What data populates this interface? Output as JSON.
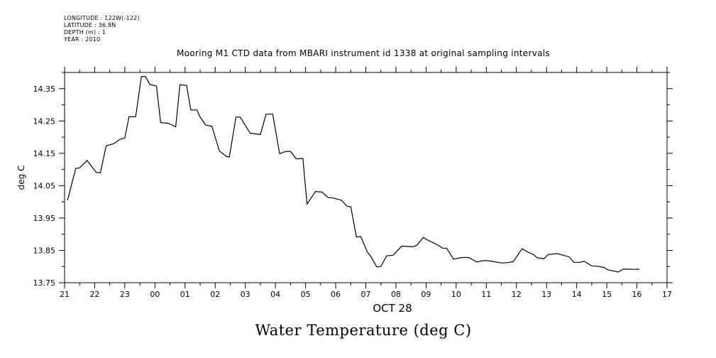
{
  "meta": {
    "longitude": "LONGITUDE : 122W(-122)",
    "latitude": "LATITUDE : 36.8N",
    "depth": "DEPTH (m) : 1",
    "year": "YEAR : 2010"
  },
  "footer_title": "Water Temperature (deg C)",
  "chart_data": {
    "type": "line",
    "title": "Mooring M1 CTD data from MBARI instrument id 1338 at original sampling intervals",
    "xlabel": "OCT 28",
    "ylabel": "deg C",
    "xlim": [
      21,
      41
    ],
    "ylim": [
      13.75,
      14.4
    ],
    "x_unit": "hours since Oct 27 00:00",
    "x_tick_values": [
      21,
      22,
      23,
      24,
      25,
      26,
      27,
      28,
      29,
      30,
      31,
      32,
      33,
      34,
      35,
      36,
      37,
      38,
      39,
      40,
      41
    ],
    "x_tick_labels": [
      "21",
      "22",
      "23",
      "00",
      "01",
      "02",
      "03",
      "04",
      "05",
      "06",
      "07",
      "08",
      "09",
      "10",
      "11",
      "12",
      "13",
      "14",
      "15",
      "16",
      "17"
    ],
    "y_tick_values": [
      13.75,
      13.85,
      13.95,
      14.05,
      14.15,
      14.25,
      14.35
    ],
    "y_tick_labels": [
      "13.75",
      "13.85",
      "13.95",
      "14.05",
      "14.15",
      "14.25",
      "14.35"
    ],
    "grid": false,
    "series": [
      {
        "x": [
          21.1,
          21.37,
          21.5,
          21.75,
          22.05,
          22.19,
          22.38,
          22.64,
          22.83,
          23.0,
          23.14,
          23.36,
          23.55,
          23.69,
          23.83,
          24.05,
          24.19,
          24.44,
          24.69,
          24.83,
          25.05,
          25.19,
          25.39,
          25.5,
          25.69,
          25.89,
          26.14,
          26.38,
          26.47,
          26.69,
          26.83,
          27.16,
          27.36,
          27.5,
          27.69,
          27.91,
          28.14,
          28.36,
          28.5,
          28.69,
          28.91,
          29.05,
          29.33,
          29.55,
          29.75,
          29.91,
          30.19,
          30.38,
          30.5,
          30.69,
          30.83,
          31.05,
          31.19,
          31.36,
          31.5,
          31.69,
          31.91,
          32.19,
          32.41,
          32.55,
          32.69,
          32.91,
          33.05,
          33.36,
          33.55,
          33.69,
          33.91,
          34.19,
          34.41,
          34.69,
          34.89,
          35.05,
          35.33,
          35.5,
          35.69,
          35.89,
          36.19,
          36.41,
          36.55,
          36.69,
          36.91,
          37.05,
          37.36,
          37.55,
          37.75,
          37.91,
          38.1,
          38.25,
          38.5,
          38.69,
          38.91,
          39.05,
          39.19,
          39.38,
          39.55,
          39.75,
          39.89,
          40.08
        ],
        "y": [
          14.005,
          14.103,
          14.105,
          14.128,
          14.091,
          14.09,
          14.173,
          14.18,
          14.193,
          14.197,
          14.263,
          14.263,
          14.387,
          14.387,
          14.363,
          14.358,
          14.245,
          14.243,
          14.232,
          14.362,
          14.36,
          14.284,
          14.284,
          14.262,
          14.237,
          14.234,
          14.157,
          14.14,
          14.139,
          14.262,
          14.262,
          14.212,
          14.21,
          14.208,
          14.271,
          14.271,
          14.149,
          14.156,
          14.156,
          14.133,
          14.134,
          13.993,
          14.032,
          14.03,
          14.013,
          14.012,
          14.005,
          13.986,
          13.985,
          13.891,
          13.893,
          13.845,
          13.828,
          13.799,
          13.8,
          13.833,
          13.835,
          13.863,
          13.862,
          13.861,
          13.865,
          13.89,
          13.882,
          13.868,
          13.857,
          13.856,
          13.823,
          13.828,
          13.828,
          13.814,
          13.818,
          13.818,
          13.814,
          13.811,
          13.812,
          13.815,
          13.855,
          13.843,
          13.838,
          13.827,
          13.824,
          13.837,
          13.84,
          13.835,
          13.83,
          13.813,
          13.813,
          13.816,
          13.802,
          13.801,
          13.797,
          13.789,
          13.787,
          13.783,
          13.792,
          13.792,
          13.791,
          13.792
        ]
      }
    ]
  }
}
